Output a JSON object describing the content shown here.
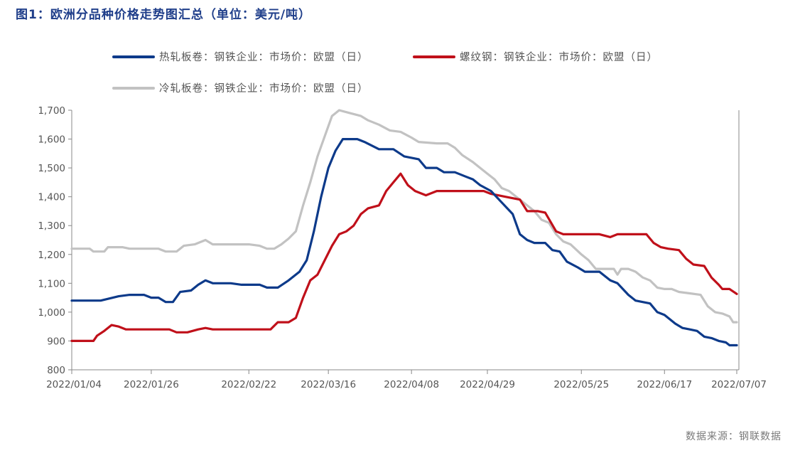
{
  "title": "图1：欧洲分品种价格走势图汇总（单位：美元/吨）",
  "source": "数据来源：钢联数据",
  "chart_data": {
    "type": "line",
    "ylim": [
      800,
      1700
    ],
    "yticks": [
      800,
      900,
      1000,
      1100,
      1200,
      1300,
      1400,
      1500,
      1600,
      1700
    ],
    "ytick_labels": [
      "800",
      "900",
      "1,000",
      "1,100",
      "1,200",
      "1,300",
      "1,400",
      "1,500",
      "1,600",
      "1,700"
    ],
    "xlim": [
      "2022-01-04",
      "2022-07-07"
    ],
    "xticks": [
      "2022-01-04",
      "2022-01-26",
      "2022-02-22",
      "2022-03-16",
      "2022-04-08",
      "2022-04-29",
      "2022-05-25",
      "2022-06-17",
      "2022-07-07"
    ],
    "xtick_labels": [
      "2022/01/04",
      "2022/01/26",
      "2022/02/22",
      "2022/03/16",
      "2022/04/08",
      "2022/04/29",
      "2022/05/25",
      "2022/06/17",
      "2022/07/07"
    ],
    "legend_position": "top",
    "series": [
      {
        "name": "热轧板卷：钢铁企业：市场价：欧盟（日）",
        "color": "#0d3a8a",
        "points": [
          [
            "2022-01-04",
            1040
          ],
          [
            "2022-01-12",
            1040
          ],
          [
            "2022-01-17",
            1055
          ],
          [
            "2022-01-20",
            1060
          ],
          [
            "2022-01-24",
            1060
          ],
          [
            "2022-01-26",
            1050
          ],
          [
            "2022-01-28",
            1050
          ],
          [
            "2022-01-30",
            1035
          ],
          [
            "2022-02-01",
            1035
          ],
          [
            "2022-02-03",
            1070
          ],
          [
            "2022-02-06",
            1075
          ],
          [
            "2022-02-08",
            1095
          ],
          [
            "2022-02-10",
            1110
          ],
          [
            "2022-02-12",
            1100
          ],
          [
            "2022-02-17",
            1100
          ],
          [
            "2022-02-20",
            1095
          ],
          [
            "2022-02-25",
            1095
          ],
          [
            "2022-02-27",
            1085
          ],
          [
            "2022-03-02",
            1085
          ],
          [
            "2022-03-05",
            1110
          ],
          [
            "2022-03-08",
            1140
          ],
          [
            "2022-03-10",
            1180
          ],
          [
            "2022-03-12",
            1280
          ],
          [
            "2022-03-14",
            1400
          ],
          [
            "2022-03-16",
            1500
          ],
          [
            "2022-03-18",
            1560
          ],
          [
            "2022-03-20",
            1600
          ],
          [
            "2022-03-24",
            1600
          ],
          [
            "2022-03-26",
            1590
          ],
          [
            "2022-03-30",
            1565
          ],
          [
            "2022-04-03",
            1565
          ],
          [
            "2022-04-06",
            1540
          ],
          [
            "2022-04-10",
            1530
          ],
          [
            "2022-04-12",
            1500
          ],
          [
            "2022-04-15",
            1500
          ],
          [
            "2022-04-17",
            1485
          ],
          [
            "2022-04-20",
            1485
          ],
          [
            "2022-04-23",
            1470
          ],
          [
            "2022-04-25",
            1460
          ],
          [
            "2022-04-27",
            1440
          ],
          [
            "2022-04-30",
            1420
          ],
          [
            "2022-05-03",
            1380
          ],
          [
            "2022-05-06",
            1340
          ],
          [
            "2022-05-08",
            1270
          ],
          [
            "2022-05-10",
            1250
          ],
          [
            "2022-05-12",
            1240
          ],
          [
            "2022-05-15",
            1240
          ],
          [
            "2022-05-17",
            1215
          ],
          [
            "2022-05-19",
            1210
          ],
          [
            "2022-05-21",
            1175
          ],
          [
            "2022-05-24",
            1155
          ],
          [
            "2022-05-26",
            1140
          ],
          [
            "2022-05-30",
            1140
          ],
          [
            "2022-06-02",
            1110
          ],
          [
            "2022-06-04",
            1100
          ],
          [
            "2022-06-07",
            1060
          ],
          [
            "2022-06-09",
            1040
          ],
          [
            "2022-06-11",
            1035
          ],
          [
            "2022-06-13",
            1030
          ],
          [
            "2022-06-15",
            1000
          ],
          [
            "2022-06-17",
            990
          ],
          [
            "2022-06-20",
            960
          ],
          [
            "2022-06-22",
            945
          ],
          [
            "2022-06-24",
            940
          ],
          [
            "2022-06-26",
            935
          ],
          [
            "2022-06-28",
            915
          ],
          [
            "2022-06-30",
            910
          ],
          [
            "2022-07-02",
            900
          ],
          [
            "2022-07-04",
            895
          ],
          [
            "2022-07-05",
            885
          ],
          [
            "2022-07-07",
            885
          ]
        ]
      },
      {
        "name": "螺纹钢：钢铁企业：市场价：欧盟（日）",
        "color": "#c0101a",
        "points": [
          [
            "2022-01-04",
            900
          ],
          [
            "2022-01-10",
            900
          ],
          [
            "2022-01-11",
            918
          ],
          [
            "2022-01-13",
            935
          ],
          [
            "2022-01-15",
            955
          ],
          [
            "2022-01-17",
            950
          ],
          [
            "2022-01-19",
            940
          ],
          [
            "2022-01-26",
            940
          ],
          [
            "2022-01-31",
            940
          ],
          [
            "2022-02-02",
            930
          ],
          [
            "2022-02-05",
            930
          ],
          [
            "2022-02-08",
            940
          ],
          [
            "2022-02-10",
            945
          ],
          [
            "2022-02-12",
            940
          ],
          [
            "2022-02-18",
            940
          ],
          [
            "2022-02-23",
            940
          ],
          [
            "2022-02-28",
            940
          ],
          [
            "2022-03-02",
            965
          ],
          [
            "2022-03-05",
            965
          ],
          [
            "2022-03-07",
            980
          ],
          [
            "2022-03-09",
            1050
          ],
          [
            "2022-03-11",
            1110
          ],
          [
            "2022-03-13",
            1130
          ],
          [
            "2022-03-15",
            1180
          ],
          [
            "2022-03-17",
            1230
          ],
          [
            "2022-03-19",
            1270
          ],
          [
            "2022-03-21",
            1280
          ],
          [
            "2022-03-23",
            1300
          ],
          [
            "2022-03-25",
            1340
          ],
          [
            "2022-03-27",
            1360
          ],
          [
            "2022-03-30",
            1370
          ],
          [
            "2022-04-01",
            1420
          ],
          [
            "2022-04-03",
            1450
          ],
          [
            "2022-04-05",
            1480
          ],
          [
            "2022-04-07",
            1440
          ],
          [
            "2022-04-09",
            1420
          ],
          [
            "2022-04-12",
            1405
          ],
          [
            "2022-04-15",
            1420
          ],
          [
            "2022-04-20",
            1420
          ],
          [
            "2022-04-25",
            1420
          ],
          [
            "2022-04-28",
            1420
          ],
          [
            "2022-04-30",
            1410
          ],
          [
            "2022-05-04",
            1400
          ],
          [
            "2022-05-06",
            1395
          ],
          [
            "2022-05-08",
            1390
          ],
          [
            "2022-05-10",
            1350
          ],
          [
            "2022-05-13",
            1350
          ],
          [
            "2022-05-15",
            1345
          ],
          [
            "2022-05-18",
            1280
          ],
          [
            "2022-05-20",
            1270
          ],
          [
            "2022-05-25",
            1270
          ],
          [
            "2022-05-30",
            1270
          ],
          [
            "2022-06-02",
            1260
          ],
          [
            "2022-06-04",
            1270
          ],
          [
            "2022-06-08",
            1270
          ],
          [
            "2022-06-12",
            1270
          ],
          [
            "2022-06-14",
            1240
          ],
          [
            "2022-06-16",
            1225
          ],
          [
            "2022-06-18",
            1220
          ],
          [
            "2022-06-21",
            1215
          ],
          [
            "2022-06-23",
            1185
          ],
          [
            "2022-06-25",
            1165
          ],
          [
            "2022-06-28",
            1160
          ],
          [
            "2022-06-30",
            1120
          ],
          [
            "2022-07-02",
            1095
          ],
          [
            "2022-07-03",
            1080
          ],
          [
            "2022-07-05",
            1080
          ],
          [
            "2022-07-07",
            1063
          ]
        ]
      },
      {
        "name": "冷轧板卷：钢铁企业：市场价：欧盟（日）",
        "color": "#c2c2c2",
        "points": [
          [
            "2022-01-04",
            1220
          ],
          [
            "2022-01-09",
            1220
          ],
          [
            "2022-01-10",
            1210
          ],
          [
            "2022-01-13",
            1210
          ],
          [
            "2022-01-14",
            1225
          ],
          [
            "2022-01-18",
            1225
          ],
          [
            "2022-01-20",
            1220
          ],
          [
            "2022-01-25",
            1220
          ],
          [
            "2022-01-28",
            1220
          ],
          [
            "2022-01-30",
            1210
          ],
          [
            "2022-02-02",
            1210
          ],
          [
            "2022-02-04",
            1230
          ],
          [
            "2022-02-07",
            1235
          ],
          [
            "2022-02-10",
            1250
          ],
          [
            "2022-02-12",
            1235
          ],
          [
            "2022-02-17",
            1235
          ],
          [
            "2022-02-22",
            1235
          ],
          [
            "2022-02-25",
            1230
          ],
          [
            "2022-02-27",
            1220
          ],
          [
            "2022-03-01",
            1220
          ],
          [
            "2022-03-03",
            1235
          ],
          [
            "2022-03-05",
            1255
          ],
          [
            "2022-03-07",
            1280
          ],
          [
            "2022-03-09",
            1370
          ],
          [
            "2022-03-11",
            1450
          ],
          [
            "2022-03-13",
            1540
          ],
          [
            "2022-03-15",
            1610
          ],
          [
            "2022-03-17",
            1680
          ],
          [
            "2022-03-19",
            1700
          ],
          [
            "2022-03-22",
            1690
          ],
          [
            "2022-03-25",
            1680
          ],
          [
            "2022-03-27",
            1665
          ],
          [
            "2022-03-30",
            1650
          ],
          [
            "2022-04-02",
            1630
          ],
          [
            "2022-04-05",
            1625
          ],
          [
            "2022-04-08",
            1605
          ],
          [
            "2022-04-10",
            1590
          ],
          [
            "2022-04-15",
            1585
          ],
          [
            "2022-04-18",
            1585
          ],
          [
            "2022-04-20",
            1570
          ],
          [
            "2022-04-22",
            1545
          ],
          [
            "2022-04-25",
            1520
          ],
          [
            "2022-04-27",
            1500
          ],
          [
            "2022-04-29",
            1480
          ],
          [
            "2022-05-01",
            1460
          ],
          [
            "2022-05-03",
            1430
          ],
          [
            "2022-05-05",
            1420
          ],
          [
            "2022-05-07",
            1400
          ],
          [
            "2022-05-09",
            1380
          ],
          [
            "2022-05-12",
            1350
          ],
          [
            "2022-05-14",
            1320
          ],
          [
            "2022-05-16",
            1310
          ],
          [
            "2022-05-18",
            1270
          ],
          [
            "2022-05-20",
            1245
          ],
          [
            "2022-05-22",
            1235
          ],
          [
            "2022-05-25",
            1200
          ],
          [
            "2022-05-27",
            1180
          ],
          [
            "2022-05-29",
            1150
          ],
          [
            "2022-06-01",
            1150
          ],
          [
            "2022-06-03",
            1150
          ],
          [
            "2022-06-04",
            1130
          ],
          [
            "2022-06-05",
            1150
          ],
          [
            "2022-06-07",
            1150
          ],
          [
            "2022-06-09",
            1140
          ],
          [
            "2022-06-11",
            1120
          ],
          [
            "2022-06-13",
            1110
          ],
          [
            "2022-06-15",
            1085
          ],
          [
            "2022-06-17",
            1080
          ],
          [
            "2022-06-19",
            1080
          ],
          [
            "2022-06-21",
            1070
          ],
          [
            "2022-06-24",
            1065
          ],
          [
            "2022-06-27",
            1060
          ],
          [
            "2022-06-29",
            1020
          ],
          [
            "2022-07-01",
            1000
          ],
          [
            "2022-07-03",
            995
          ],
          [
            "2022-07-05",
            985
          ],
          [
            "2022-07-06",
            965
          ],
          [
            "2022-07-07",
            965
          ]
        ]
      }
    ]
  }
}
